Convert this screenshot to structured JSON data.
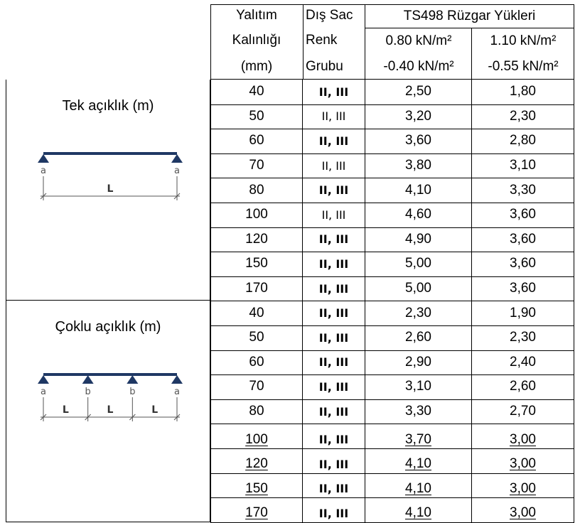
{
  "header": {
    "thickness": [
      "Yalıtım",
      "Kalınlığı",
      "(mm)"
    ],
    "color_group": [
      "Dış Sac",
      "Renk",
      "Grubu"
    ],
    "wind_title": "TS498 Rüzgar Yükleri",
    "wind_col1": [
      "0.80 kN/m²",
      "-0.40 kN/m²"
    ],
    "wind_col2": [
      "1.10 kN/m²",
      "-0.55 kN/m²"
    ]
  },
  "sections": [
    {
      "title": "Tek açıklık (m)",
      "diagram": {
        "supports": [
          "a",
          "a"
        ],
        "spans": [
          "L"
        ]
      },
      "rows": [
        {
          "thickness": "40",
          "group": "II, III",
          "bold": true,
          "w1": "2,50",
          "w2": "1,80"
        },
        {
          "thickness": "50",
          "group": "II, III",
          "bold": false,
          "w1": "3,20",
          "w2": "2,30"
        },
        {
          "thickness": "60",
          "group": "II, III",
          "bold": true,
          "w1": "3,60",
          "w2": "2,80"
        },
        {
          "thickness": "70",
          "group": "II, III",
          "bold": false,
          "w1": "3,80",
          "w2": "3,10"
        },
        {
          "thickness": "80",
          "group": "II, III",
          "bold": true,
          "w1": "4,10",
          "w2": "3,30"
        },
        {
          "thickness": "100",
          "group": "II, III",
          "bold": false,
          "w1": "4,60",
          "w2": "3,60"
        },
        {
          "thickness": "120",
          "group": "II, III",
          "bold": true,
          "w1": "4,90",
          "w2": "3,60"
        },
        {
          "thickness": "150",
          "group": "II, III",
          "bold": true,
          "w1": "5,00",
          "w2": "3,60"
        },
        {
          "thickness": "170",
          "group": "II, III",
          "bold": true,
          "w1": "5,00",
          "w2": "3,60"
        }
      ]
    },
    {
      "title": "Çoklu açıklık (m)",
      "diagram": {
        "supports": [
          "a",
          "b",
          "b",
          "a"
        ],
        "spans": [
          "L",
          "L",
          "L"
        ]
      },
      "rows": [
        {
          "thickness": "40",
          "group": "II, III",
          "bold": true,
          "w1": "2,30",
          "w2": "1,90"
        },
        {
          "thickness": "50",
          "group": "II, III",
          "bold": true,
          "w1": "2,60",
          "w2": "2,30"
        },
        {
          "thickness": "60",
          "group": "II, III",
          "bold": true,
          "w1": "2,90",
          "w2": "2,40"
        },
        {
          "thickness": "70",
          "group": "II, III",
          "bold": true,
          "w1": "3,10",
          "w2": "2,60"
        },
        {
          "thickness": "80",
          "group": "II, III",
          "bold": true,
          "w1": "3,30",
          "w2": "2,70"
        },
        {
          "thickness": "100",
          "group": "II, III",
          "bold": true,
          "w1": "3,70",
          "w2": "3,00"
        },
        {
          "thickness": "120",
          "group": "II, III",
          "bold": true,
          "w1": "4,10",
          "w2": "3,00"
        },
        {
          "thickness": "150",
          "group": "II, III",
          "bold": true,
          "w1": "4,10",
          "w2": "3,00"
        },
        {
          "thickness": "170",
          "group": "II, III",
          "bold": true,
          "w1": "4,10",
          "w2": "3,00"
        }
      ]
    }
  ],
  "colors": {
    "beam": "#1f3864",
    "dimension": "#555555"
  }
}
